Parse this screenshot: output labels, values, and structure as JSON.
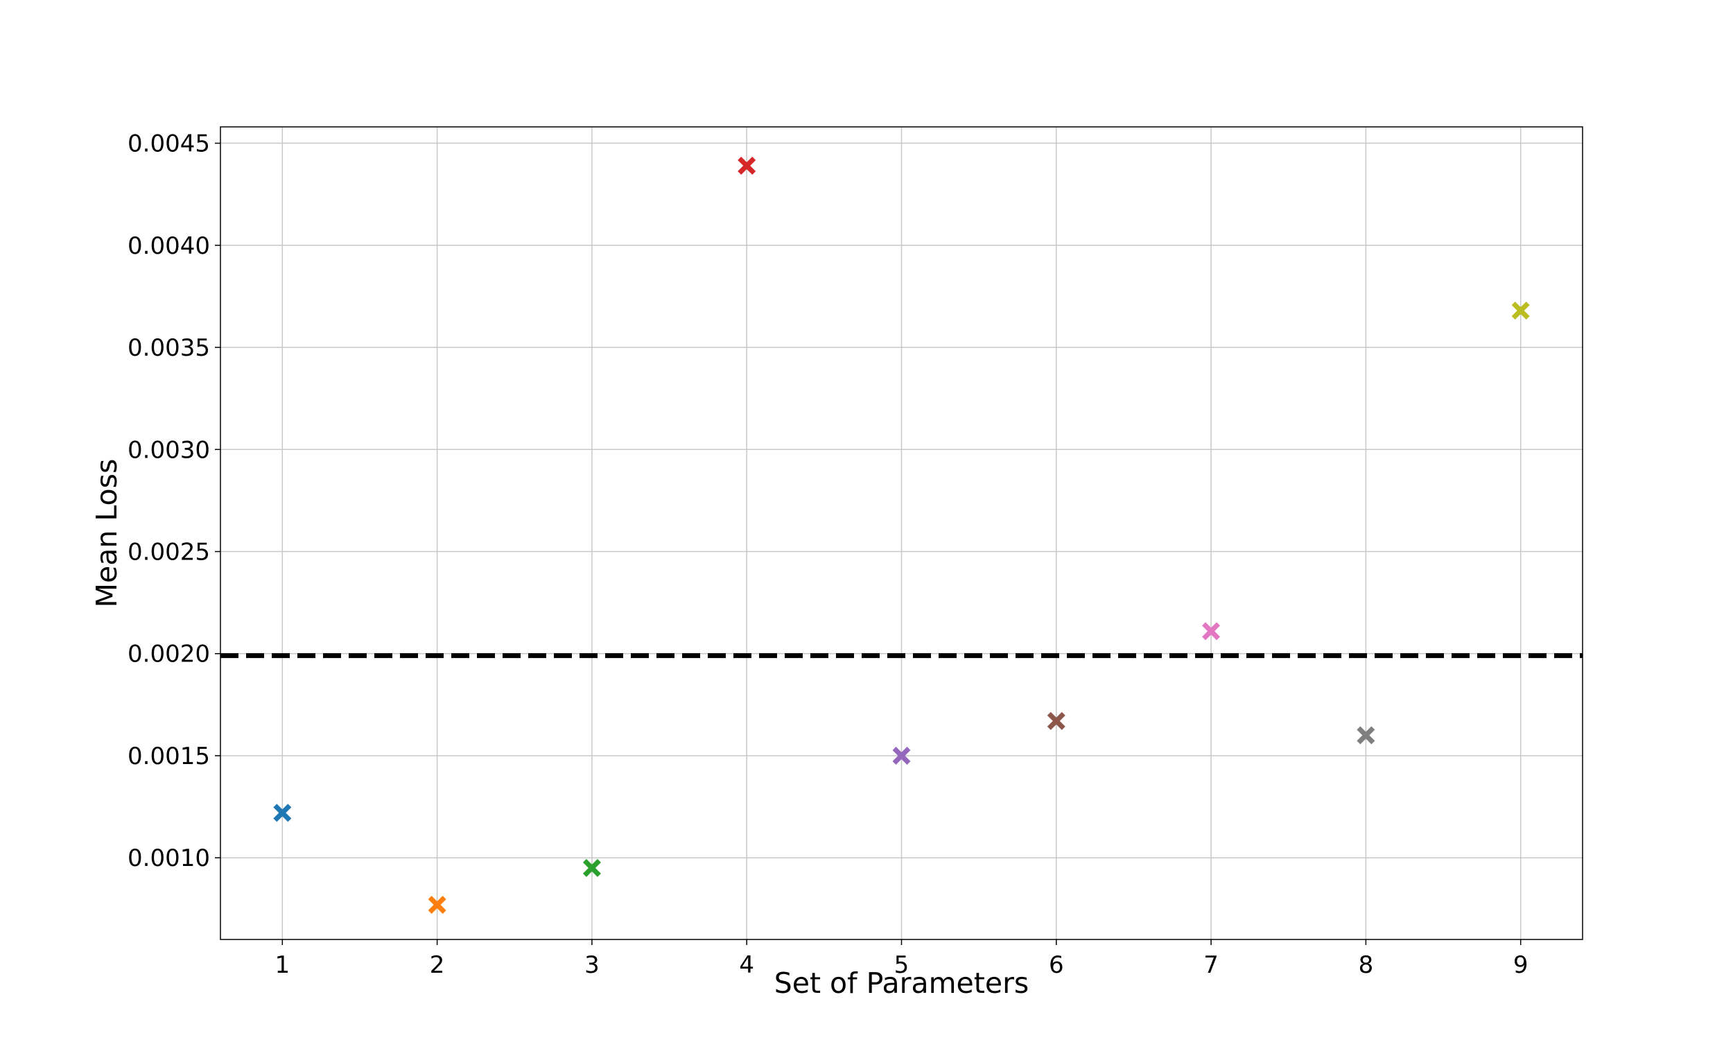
{
  "chart_data": {
    "type": "scatter",
    "title": "",
    "xlabel": "Set of Parameters",
    "ylabel": "Mean Loss",
    "xlim": [
      0.6,
      9.4
    ],
    "ylim": [
      0.0006,
      0.00458
    ],
    "grid": true,
    "marker": "X",
    "x_ticks": [
      "1",
      "2",
      "3",
      "4",
      "5",
      "6",
      "7",
      "8",
      "9"
    ],
    "y_ticks": [
      "0.0010",
      "0.0015",
      "0.0020",
      "0.0025",
      "0.0030",
      "0.0035",
      "0.0040",
      "0.0045"
    ],
    "points": [
      {
        "x": 1,
        "y": 0.00122,
        "color": "#1f77b4"
      },
      {
        "x": 2,
        "y": 0.00077,
        "color": "#ff7f0e"
      },
      {
        "x": 3,
        "y": 0.00095,
        "color": "#2ca02c"
      },
      {
        "x": 4,
        "y": 0.00439,
        "color": "#d62728"
      },
      {
        "x": 5,
        "y": 0.0015,
        "color": "#9467bd"
      },
      {
        "x": 6,
        "y": 0.00167,
        "color": "#8c564b"
      },
      {
        "x": 7,
        "y": 0.00211,
        "color": "#e377c2"
      },
      {
        "x": 8,
        "y": 0.0016,
        "color": "#7f7f7f"
      },
      {
        "x": 9,
        "y": 0.00368,
        "color": "#bcbd22"
      }
    ],
    "reference_line": {
      "y": 0.00199,
      "style": "dashed",
      "color": "#000000"
    }
  }
}
